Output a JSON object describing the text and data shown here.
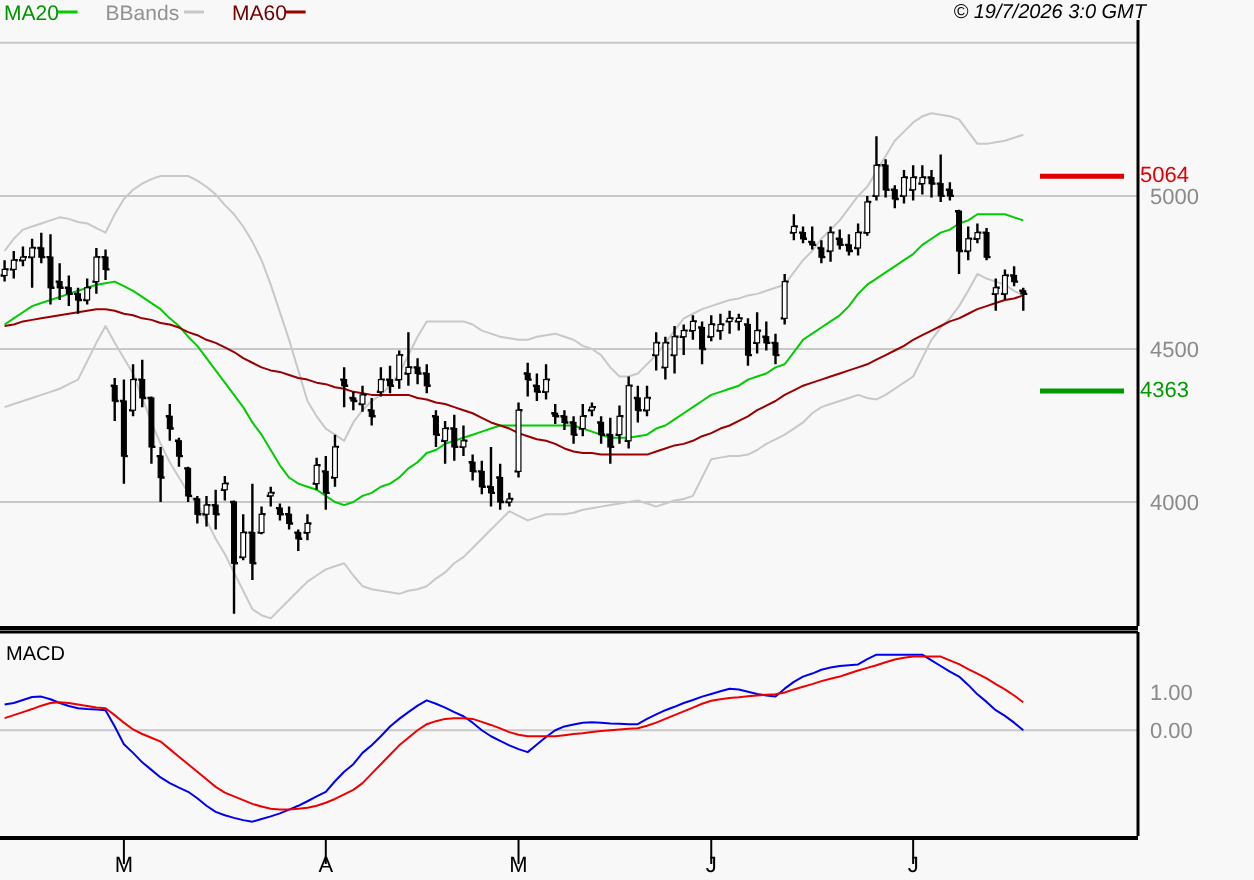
{
  "chart_data": [
    {
      "type": "candlestick",
      "color": "#000000",
      "legend": "top left",
      "grid": "y",
      "tick_labels": "y",
      "annotations": [
        "© 19/7/2026 3:0 GMT"
      ],
      "categories": [
        null,
        null,
        null,
        null,
        null,
        null,
        null,
        null,
        null,
        null,
        null,
        null,
        null,
        null,
        null,
        null,
        null,
        null,
        null,
        null,
        null,
        null,
        null,
        null,
        null,
        null,
        null,
        null,
        null,
        null,
        null,
        null,
        null,
        null,
        null,
        null,
        null,
        null,
        null,
        null,
        null,
        null,
        null,
        null,
        null,
        null,
        null,
        null,
        null,
        null,
        null,
        null,
        null,
        null,
        null,
        null,
        null,
        null,
        null,
        null,
        null,
        null,
        null,
        null,
        null,
        null,
        null,
        null,
        null,
        null,
        null,
        null,
        null,
        null,
        null,
        null,
        null,
        null,
        null,
        null,
        null,
        null,
        null,
        null,
        null,
        null,
        null,
        null,
        null,
        null,
        null,
        null,
        null,
        null,
        null,
        null,
        null,
        null,
        null,
        null,
        null,
        null,
        null,
        null,
        null,
        null,
        null,
        null,
        null,
        null,
        null,
        null,
        null,
        null,
        null,
        null,
        null,
        null,
        null,
        null,
        null,
        null,
        null,
        null
      ],
      "ylim": [
        3595,
        5640
      ],
      "yticks": [
        4000,
        4500,
        5000,
        {
          "value": 5500,
          "label": null
        }
      ],
      "ref_lines": [
        {
          "axis": "y",
          "value": 5064,
          "label": "5064",
          "color": "#e00000"
        },
        {
          "axis": "y",
          "value": 4363,
          "label": "4363",
          "color": "#009900"
        }
      ],
      "ohlc": [
        [
          4740,
          4790,
          4720,
          4760
        ],
        [
          4760,
          4820,
          4730,
          4790
        ],
        [
          4790,
          4835,
          4770,
          4800
        ],
        [
          4800,
          4860,
          4700,
          4830
        ],
        [
          4830,
          4880,
          4780,
          4800
        ],
        [
          4800,
          4875,
          4645,
          4700
        ],
        [
          4720,
          4780,
          4660,
          4700
        ],
        [
          4700,
          4740,
          4640,
          4680
        ],
        [
          4680,
          4700,
          4615,
          4660
        ],
        [
          4660,
          4730,
          4645,
          4700
        ],
        [
          4720,
          4830,
          4680,
          4800
        ],
        [
          4800,
          4825,
          4725,
          4760
        ],
        [
          4380,
          4405,
          4265,
          4330
        ],
        [
          4330,
          4400,
          4060,
          4150
        ],
        [
          4300,
          4450,
          4280,
          4400
        ],
        [
          4400,
          4465,
          4310,
          4340
        ],
        [
          4340,
          4345,
          4125,
          4180
        ],
        [
          4150,
          4180,
          4000,
          4080
        ],
        [
          4280,
          4320,
          4200,
          4240
        ],
        [
          4200,
          4210,
          4115,
          4150
        ],
        [
          4110,
          4115,
          4000,
          4020
        ],
        [
          4010,
          4020,
          3930,
          3960
        ],
        [
          3960,
          4020,
          3920,
          3990
        ],
        [
          3990,
          4040,
          3910,
          3960
        ],
        [
          4040,
          4085,
          4005,
          4060
        ],
        [
          4000,
          4005,
          3635,
          3800
        ],
        [
          3820,
          3960,
          3810,
          3900
        ],
        [
          3900,
          4060,
          3745,
          3800
        ],
        [
          3900,
          3985,
          3895,
          3960
        ],
        [
          4020,
          4050,
          3985,
          4030
        ],
        [
          3980,
          3995,
          3940,
          3960
        ],
        [
          3960,
          3985,
          3910,
          3930
        ],
        [
          3900,
          3910,
          3840,
          3880
        ],
        [
          3900,
          3960,
          3875,
          3930
        ],
        [
          4060,
          4145,
          4040,
          4120
        ],
        [
          4100,
          4150,
          3975,
          4030
        ],
        [
          4080,
          4220,
          4050,
          4180
        ],
        [
          4400,
          4440,
          4310,
          4380
        ],
        [
          4340,
          4360,
          4300,
          4330
        ],
        [
          4320,
          4380,
          4295,
          4350
        ],
        [
          4300,
          4340,
          4250,
          4280
        ],
        [
          4360,
          4440,
          4345,
          4400
        ],
        [
          4400,
          4445,
          4355,
          4380
        ],
        [
          4400,
          4495,
          4370,
          4480
        ],
        [
          4420,
          4555,
          4380,
          4440
        ],
        [
          4440,
          4470,
          4385,
          4420
        ],
        [
          4420,
          4450,
          4355,
          4380
        ],
        [
          4280,
          4300,
          4180,
          4220
        ],
        [
          4200,
          4265,
          4125,
          4240
        ],
        [
          4240,
          4285,
          4135,
          4180
        ],
        [
          4180,
          4250,
          4150,
          4200
        ],
        [
          4130,
          4155,
          4070,
          4100
        ],
        [
          4100,
          4135,
          4025,
          4050
        ],
        [
          4050,
          4180,
          3985,
          4030
        ],
        [
          4080,
          4125,
          3975,
          4000
        ],
        [
          4000,
          4030,
          3985,
          4010
        ],
        [
          4100,
          4325,
          4080,
          4300
        ],
        [
          4420,
          4455,
          4345,
          4400
        ],
        [
          4380,
          4420,
          4330,
          4360
        ],
        [
          4360,
          4450,
          4335,
          4400
        ],
        [
          4290,
          4320,
          4255,
          4280
        ],
        [
          4280,
          4300,
          4235,
          4260
        ],
        [
          4260,
          4280,
          4190,
          4220
        ],
        [
          4240,
          4320,
          4215,
          4280
        ],
        [
          4300,
          4325,
          4280,
          4310
        ],
        [
          4260,
          4280,
          4190,
          4220
        ],
        [
          4220,
          4275,
          4125,
          4180
        ],
        [
          4220,
          4315,
          4190,
          4280
        ],
        [
          4200,
          4410,
          4175,
          4380
        ],
        [
          4340,
          4380,
          4260,
          4300
        ],
        [
          4300,
          4380,
          4280,
          4340
        ],
        [
          4480,
          4555,
          4430,
          4520
        ],
        [
          4440,
          4540,
          4400,
          4520
        ],
        [
          4480,
          4575,
          4420,
          4540
        ],
        [
          4540,
          4580,
          4480,
          4560
        ],
        [
          4560,
          4610,
          4530,
          4590
        ],
        [
          4570,
          4590,
          4450,
          4500
        ],
        [
          4540,
          4610,
          4525,
          4580
        ],
        [
          4560,
          4615,
          4530,
          4580
        ],
        [
          4590,
          4625,
          4550,
          4600
        ],
        [
          4590,
          4615,
          4560,
          4600
        ],
        [
          4580,
          4600,
          4445,
          4480
        ],
        [
          4520,
          4620,
          4485,
          4560
        ],
        [
          4540,
          4590,
          4495,
          4520
        ],
        [
          4520,
          4550,
          4450,
          4480
        ],
        [
          4600,
          4745,
          4580,
          4720
        ],
        [
          4880,
          4940,
          4855,
          4900
        ],
        [
          4880,
          4900,
          4845,
          4860
        ],
        [
          4850,
          4900,
          4825,
          4840
        ],
        [
          4830,
          4855,
          4780,
          4800
        ],
        [
          4820,
          4900,
          4785,
          4880
        ],
        [
          4860,
          4890,
          4825,
          4840
        ],
        [
          4840,
          4875,
          4805,
          4820
        ],
        [
          4830,
          4910,
          4805,
          4880
        ],
        [
          4880,
          5000,
          4870,
          4980
        ],
        [
          5000,
          5195,
          4985,
          5100
        ],
        [
          5100,
          5120,
          4995,
          5020
        ],
        [
          5020,
          5035,
          4960,
          4990
        ],
        [
          5000,
          5085,
          4975,
          5060
        ],
        [
          5020,
          5100,
          4985,
          5060
        ],
        [
          5040,
          5100,
          5005,
          5060
        ],
        [
          5060,
          5085,
          4995,
          5040
        ],
        [
          5040,
          5135,
          4980,
          5000
        ],
        [
          5020,
          5045,
          4985,
          5000
        ],
        [
          4950,
          4955,
          4745,
          4820
        ],
        [
          4820,
          4900,
          4790,
          4860
        ],
        [
          4860,
          4910,
          4845,
          4880
        ],
        [
          4880,
          4895,
          4790,
          4800
        ],
        [
          4680,
          4730,
          4625,
          4700
        ],
        [
          4680,
          4760,
          4660,
          4740
        ],
        [
          4740,
          4770,
          4705,
          4720
        ],
        [
          4690,
          4700,
          4625,
          4680
        ],
        null,
        null,
        null,
        null,
        null,
        null,
        null,
        null,
        null,
        null,
        null,
        null
      ],
      "series": [
        {
          "name": "MA20",
          "type": "line",
          "color": "#00cc00",
          "values": [
            4580,
            4600,
            4620,
            4640,
            4650,
            4660,
            4670,
            4680,
            4690,
            4700,
            4710,
            4715,
            4720,
            4705,
            4690,
            4670,
            4650,
            4630,
            4600,
            4575,
            4540,
            4510,
            4470,
            4430,
            4390,
            4350,
            4310,
            4260,
            4220,
            4170,
            4120,
            4080,
            4060,
            4050,
            4040,
            4020,
            4000,
            3990,
            4000,
            4020,
            4030,
            4050,
            4060,
            4080,
            4110,
            4130,
            4160,
            4170,
            4190,
            4200,
            4210,
            4220,
            4230,
            4240,
            4250,
            4250,
            4250,
            4250,
            4250,
            4250,
            4250,
            4250,
            4250,
            4240,
            4230,
            4220,
            4210,
            4210,
            4210,
            4215,
            4220,
            4240,
            4250,
            4270,
            4290,
            4310,
            4330,
            4350,
            4360,
            4370,
            4380,
            4400,
            4410,
            4420,
            4440,
            4450,
            4490,
            4530,
            4550,
            4570,
            4590,
            4610,
            4640,
            4680,
            4710,
            4730,
            4750,
            4770,
            4790,
            4810,
            4840,
            4860,
            4880,
            4890,
            4910,
            4920,
            4940,
            4940,
            4940,
            4940,
            4930,
            4920,
            null,
            null,
            null,
            null,
            null,
            null,
            null,
            null,
            null,
            null,
            null,
            null
          ]
        },
        {
          "name": "BBands",
          "type": "line",
          "color": "#c8c8c8",
          "values": [
            4820,
            4860,
            4890,
            4900,
            4910,
            4920,
            4930,
            4925,
            4915,
            4910,
            4895,
            4880,
            4940,
            4990,
            5020,
            5040,
            5055,
            5065,
            5065,
            5065,
            5065,
            5050,
            5030,
            5005,
            4970,
            4940,
            4900,
            4850,
            4790,
            4710,
            4620,
            4530,
            4430,
            4330,
            4280,
            4240,
            4220,
            4200,
            4260,
            4300,
            4330,
            4350,
            4380,
            4420,
            4480,
            4540,
            4590,
            4590,
            4590,
            4590,
            4590,
            4580,
            4560,
            4550,
            4540,
            4535,
            4530,
            4530,
            4540,
            4545,
            4550,
            4540,
            4530,
            4510,
            4500,
            4480,
            4440,
            4410,
            4410,
            4420,
            4450,
            4480,
            4520,
            4560,
            4600,
            4615,
            4630,
            4640,
            4650,
            4660,
            4665,
            4675,
            4680,
            4690,
            4700,
            4710,
            4750,
            4790,
            4820,
            4860,
            4890,
            4920,
            4960,
            5000,
            5030,
            5080,
            5130,
            5180,
            5210,
            5240,
            5260,
            5270,
            5265,
            5260,
            5250,
            5210,
            5170,
            5170,
            5175,
            5180,
            5190,
            5200,
            null,
            null,
            null,
            null,
            null,
            null,
            null,
            null,
            null,
            null,
            null,
            null
          ]
        },
        {
          "type": "line",
          "color": "#c8c8c8",
          "values": [
            4310,
            4320,
            4330,
            4340,
            4350,
            4360,
            4370,
            4385,
            4400,
            4460,
            4520,
            4575,
            4520,
            4470,
            4420,
            4340,
            4260,
            4190,
            4130,
            4080,
            4030,
            3990,
            3940,
            3880,
            3830,
            3770,
            3710,
            3650,
            3630,
            3620,
            3650,
            3680,
            3710,
            3740,
            3760,
            3780,
            3790,
            3800,
            3760,
            3725,
            3715,
            3710,
            3705,
            3700,
            3710,
            3715,
            3725,
            3750,
            3770,
            3800,
            3820,
            3850,
            3880,
            3910,
            3940,
            3970,
            3955,
            3940,
            3950,
            3960,
            3960,
            3960,
            3965,
            3975,
            3980,
            3985,
            3990,
            3995,
            4000,
            4005,
            3995,
            3985,
            3995,
            4005,
            4010,
            4020,
            4080,
            4140,
            4145,
            4150,
            4150,
            4155,
            4170,
            4190,
            4205,
            4220,
            4240,
            4260,
            4290,
            4310,
            4320,
            4330,
            4340,
            4350,
            4340,
            4335,
            4350,
            4370,
            4390,
            4410,
            4470,
            4530,
            4570,
            4600,
            4640,
            4690,
            4745,
            4730,
            4720,
            4710,
            4690,
            4675,
            null,
            null,
            null,
            null,
            null,
            null,
            null,
            null,
            null,
            null,
            null,
            null
          ]
        },
        {
          "name": "MA60",
          "type": "line",
          "color": "#990000",
          "values": [
            4575,
            4580,
            4590,
            4595,
            4600,
            4605,
            4610,
            4615,
            4620,
            4625,
            4630,
            4630,
            4625,
            4615,
            4610,
            4600,
            4595,
            4585,
            4580,
            4570,
            4555,
            4545,
            4530,
            4520,
            4505,
            4490,
            4470,
            4455,
            4440,
            4430,
            4425,
            4415,
            4405,
            4400,
            4390,
            4385,
            4375,
            4370,
            4360,
            4355,
            4350,
            4350,
            4350,
            4350,
            4350,
            4340,
            4335,
            4325,
            4320,
            4310,
            4300,
            4290,
            4275,
            4260,
            4250,
            4240,
            4225,
            4215,
            4205,
            4200,
            4190,
            4175,
            4165,
            4160,
            4160,
            4155,
            4155,
            4155,
            4155,
            4155,
            4155,
            4165,
            4175,
            4185,
            4190,
            4200,
            4215,
            4225,
            4240,
            4250,
            4265,
            4280,
            4300,
            4315,
            4330,
            4350,
            4365,
            4380,
            4390,
            4400,
            4410,
            4420,
            4430,
            4440,
            4450,
            4465,
            4480,
            4495,
            4510,
            4530,
            4545,
            4560,
            4575,
            4590,
            4600,
            4615,
            4630,
            4640,
            4650,
            4660,
            4665,
            4675,
            null,
            null,
            null,
            null,
            null,
            null,
            null,
            null,
            null,
            null,
            null,
            null
          ]
        }
      ]
    },
    {
      "type": "line",
      "title": "MACD",
      "grid": false,
      "categories": [
        null,
        null,
        null,
        null,
        null,
        null,
        null,
        null,
        null,
        null,
        null,
        null,
        null,
        "M",
        null,
        null,
        null,
        null,
        null,
        null,
        null,
        null,
        null,
        null,
        null,
        null,
        null,
        null,
        null,
        null,
        null,
        null,
        null,
        null,
        null,
        "A",
        null,
        null,
        null,
        null,
        null,
        null,
        null,
        null,
        null,
        null,
        null,
        null,
        null,
        null,
        null,
        null,
        null,
        null,
        null,
        null,
        "M",
        null,
        null,
        null,
        null,
        null,
        null,
        null,
        null,
        null,
        null,
        null,
        null,
        null,
        null,
        null,
        null,
        null,
        null,
        null,
        null,
        "J",
        null,
        null,
        null,
        null,
        null,
        null,
        null,
        null,
        null,
        null,
        null,
        null,
        null,
        null,
        null,
        null,
        null,
        null,
        null,
        null,
        null,
        "J",
        null,
        null,
        null,
        null,
        null,
        null,
        null,
        null,
        null,
        null,
        null,
        null,
        null,
        null,
        null,
        null,
        null,
        null,
        null,
        null,
        null,
        null,
        null,
        null
      ],
      "ylim": [
        -2.8,
        2.6
      ],
      "yticks": [
        {
          "value": 0,
          "label": "0.00"
        },
        {
          "value": 1,
          "label": "1.00"
        }
      ],
      "ref_lines": [
        {
          "axis": "y",
          "value": 0,
          "color": "#c8c8c8"
        }
      ],
      "series": [
        {
          "color": "#0000ee",
          "values": [
            0.68,
            0.72,
            0.8,
            0.88,
            0.89,
            0.82,
            0.72,
            0.64,
            0.58,
            0.56,
            0.55,
            0.53,
            0.1,
            -0.37,
            -0.6,
            -0.85,
            -1.05,
            -1.25,
            -1.4,
            -1.52,
            -1.63,
            -1.8,
            -2.0,
            -2.16,
            -2.25,
            -2.32,
            -2.38,
            -2.42,
            -2.35,
            -2.28,
            -2.2,
            -2.1,
            -2.0,
            -1.88,
            -1.75,
            -1.63,
            -1.35,
            -1.1,
            -0.9,
            -0.6,
            -0.4,
            -0.16,
            0.1,
            0.3,
            0.48,
            0.65,
            0.79,
            0.7,
            0.6,
            0.48,
            0.37,
            0.2,
            0.0,
            -0.16,
            -0.28,
            -0.4,
            -0.5,
            -0.58,
            -0.38,
            -0.18,
            0,
            0.1,
            0.15,
            0.2,
            0.21,
            0.2,
            0.18,
            0.17,
            0.16,
            0.16,
            0.3,
            0.42,
            0.53,
            0.62,
            0.72,
            0.8,
            0.89,
            0.96,
            1.03,
            1.1,
            1.08,
            1.02,
            0.96,
            0.92,
            0.89,
            1.1,
            1.28,
            1.42,
            1.5,
            1.6,
            1.66,
            1.7,
            1.72,
            1.74,
            1.88,
            2.0,
            2.0,
            2.0,
            2.0,
            2.0,
            2.0,
            1.85,
            1.7,
            1.55,
            1.42,
            1.2,
            0.95,
            0.75,
            0.53,
            0.38,
            0.2,
            0.0,
            null,
            null,
            null,
            null,
            null,
            null,
            null,
            null,
            null,
            null,
            null,
            null
          ]
        },
        {
          "color": "#ee0000",
          "values": [
            0.32,
            0.4,
            0.48,
            0.56,
            0.65,
            0.72,
            0.74,
            0.72,
            0.68,
            0.64,
            0.6,
            0.58,
            0.4,
            0.2,
            0.02,
            -0.1,
            -0.2,
            -0.3,
            -0.5,
            -0.7,
            -0.9,
            -1.1,
            -1.3,
            -1.5,
            -1.65,
            -1.75,
            -1.85,
            -1.95,
            -2.02,
            -2.08,
            -2.1,
            -2.1,
            -2.08,
            -2.05,
            -2.0,
            -1.92,
            -1.82,
            -1.7,
            -1.58,
            -1.4,
            -1.15,
            -0.9,
            -0.65,
            -0.4,
            -0.2,
            0.0,
            0.16,
            0.24,
            0.3,
            0.32,
            0.32,
            0.3,
            0.22,
            0.14,
            0.05,
            -0.05,
            -0.12,
            -0.16,
            -0.16,
            -0.16,
            -0.16,
            -0.13,
            -0.1,
            -0.08,
            -0.05,
            -0.02,
            0.0,
            0.02,
            0.04,
            0.05,
            0.12,
            0.2,
            0.3,
            0.4,
            0.5,
            0.6,
            0.7,
            0.78,
            0.82,
            0.85,
            0.87,
            0.9,
            0.92,
            0.94,
            0.95,
            1.0,
            1.08,
            1.15,
            1.22,
            1.3,
            1.36,
            1.42,
            1.5,
            1.58,
            1.65,
            1.72,
            1.8,
            1.87,
            1.92,
            1.95,
            1.95,
            1.95,
            1.95,
            1.85,
            1.75,
            1.62,
            1.5,
            1.37,
            1.22,
            1.08,
            0.92,
            0.74,
            null,
            null,
            null,
            null,
            null,
            null,
            null,
            null,
            null,
            null,
            null,
            null
          ]
        }
      ]
    }
  ]
}
